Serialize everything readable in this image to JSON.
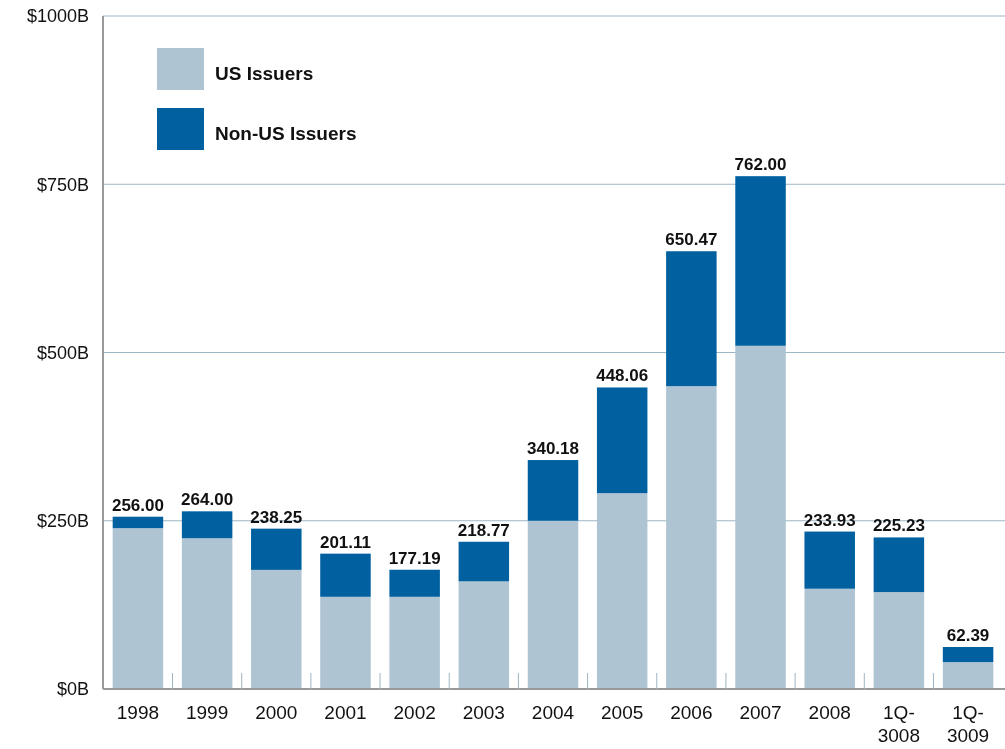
{
  "chart_data": {
    "type": "bar",
    "stacked": true,
    "categories": [
      "1998",
      "1999",
      "2000",
      "2001",
      "2002",
      "2003",
      "2004",
      "2005",
      "2006",
      "2007",
      "2008",
      "1Q-3008",
      "1Q-3009"
    ],
    "series": [
      {
        "name": "US Issuers",
        "color": "#aec4d3",
        "values": [
          239,
          224,
          177,
          137,
          137,
          160,
          250,
          291,
          450,
          510,
          149,
          144,
          40
        ]
      },
      {
        "name": "Non-US Issuers",
        "color": "#0060a0",
        "values": [
          17,
          40,
          61.25,
          64.11,
          40.19,
          58.77,
          90.18,
          157.06,
          200.47,
          252,
          84.93,
          81.23,
          22.39
        ]
      }
    ],
    "totals": [
      "256.00",
      "264.00",
      "238.25",
      "201.11",
      "177.19",
      "218.77",
      "340.18",
      "448.06",
      "650.47",
      "762.00",
      "233.93",
      "225.23",
      "62.39"
    ],
    "ylim": [
      0,
      1000
    ],
    "yticks": [
      {
        "value": 0,
        "label": "$0B"
      },
      {
        "value": 250,
        "label": "$250B"
      },
      {
        "value": 500,
        "label": "$500B"
      },
      {
        "value": 750,
        "label": "$750B"
      },
      {
        "value": 1000,
        "label": "$1000B"
      }
    ],
    "grid": "y",
    "legend": "top left"
  }
}
